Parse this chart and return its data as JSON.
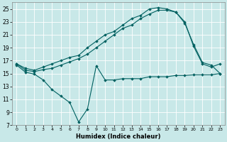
{
  "xlabel": "Humidex (Indice chaleur)",
  "bg_color": "#c8e8e8",
  "grid_color": "#ffffff",
  "line_color": "#006060",
  "xlim": [
    -0.5,
    23.5
  ],
  "ylim": [
    7,
    26
  ],
  "xticks": [
    0,
    1,
    2,
    3,
    4,
    5,
    6,
    7,
    8,
    9,
    10,
    11,
    12,
    13,
    14,
    15,
    16,
    17,
    18,
    19,
    20,
    21,
    22,
    23
  ],
  "yticks": [
    7,
    9,
    11,
    13,
    15,
    17,
    19,
    21,
    23,
    25
  ],
  "line1_x": [
    0,
    1,
    2,
    3,
    4,
    5,
    6,
    7,
    8,
    9,
    10,
    11,
    12,
    13,
    14,
    15,
    16,
    17,
    18,
    19,
    20,
    21,
    22,
    23
  ],
  "line1_y": [
    16.5,
    15.8,
    15.5,
    16.0,
    16.5,
    17.0,
    17.5,
    17.8,
    19.0,
    20.0,
    21.0,
    21.5,
    22.5,
    23.5,
    24.0,
    25.0,
    25.2,
    25.0,
    24.5,
    23.0,
    19.2,
    16.5,
    16.0,
    16.5
  ],
  "line2_x": [
    0,
    1,
    2,
    3,
    4,
    5,
    6,
    7,
    8,
    9,
    10,
    11,
    12,
    13,
    14,
    15,
    16,
    17,
    18,
    19,
    20,
    21,
    22,
    23
  ],
  "line2_y": [
    16.5,
    15.5,
    15.3,
    15.6,
    15.8,
    16.3,
    16.8,
    17.3,
    18.0,
    19.0,
    20.0,
    21.0,
    22.0,
    22.5,
    23.5,
    24.2,
    24.8,
    24.8,
    24.5,
    22.8,
    19.5,
    16.7,
    16.3,
    15.0
  ],
  "line3_x": [
    0,
    1,
    2,
    3,
    4,
    5,
    6,
    7,
    8,
    9,
    10,
    11,
    12,
    13,
    14,
    15,
    16,
    17,
    18,
    19,
    20,
    21,
    22,
    23
  ],
  "line3_y": [
    16.3,
    15.2,
    14.9,
    14.0,
    12.5,
    11.5,
    10.5,
    7.5,
    9.5,
    16.2,
    14.0,
    14.0,
    14.2,
    14.2,
    14.2,
    14.5,
    14.5,
    14.5,
    14.7,
    14.7,
    14.8,
    14.8,
    14.8,
    15.0
  ]
}
